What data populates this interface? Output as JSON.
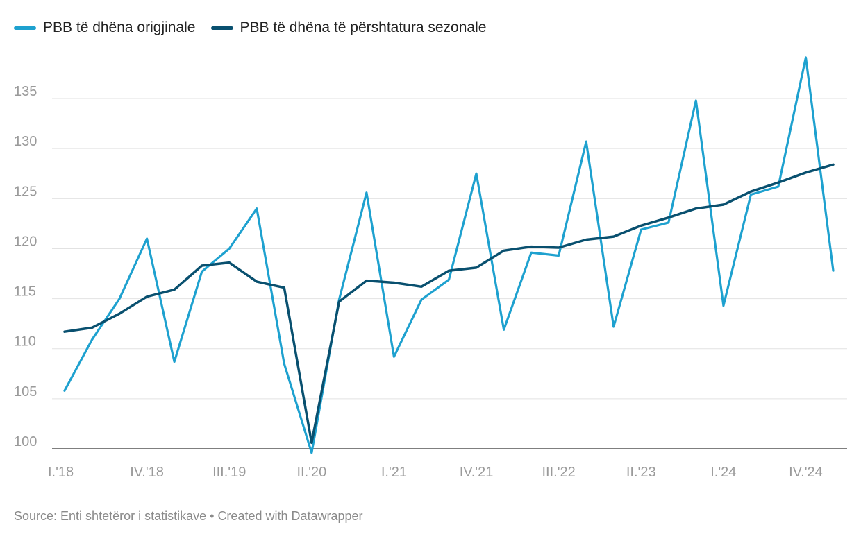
{
  "legend": [
    {
      "label": "PBB të dhëna origjinale",
      "color": "#1ea1cf"
    },
    {
      "label": "PBB të dhëna të përshtatura sezonale",
      "color": "#09506f"
    }
  ],
  "footer": {
    "source": "Source: Enti shtetëror i statistikave",
    "separator": " • ",
    "credit": "Created with Datawrapper"
  },
  "chart_data": {
    "type": "line",
    "x": [
      "I.'18",
      "II.'18",
      "III.'18",
      "IV.'18",
      "I.'19",
      "II.'19",
      "III.'19",
      "IV.'19",
      "I.'20",
      "II.'20",
      "III.'20",
      "IV.'20",
      "I.'21",
      "II.'21",
      "III.'21",
      "IV.'21",
      "I.'22",
      "II.'22",
      "III.'22",
      "IV.'22",
      "I.'23",
      "II.'23",
      "III.'23",
      "IV.'23",
      "I.'24",
      "II.'24",
      "III.'24",
      "IV.'24",
      "I.'25"
    ],
    "x_tick_labels": [
      "I.'18",
      "IV.'18",
      "III.'19",
      "II.'20",
      "I.'21",
      "IV.'21",
      "III.'22",
      "II.'23",
      "I.'24",
      "IV.'24"
    ],
    "x_tick_indices": [
      0,
      3,
      6,
      9,
      12,
      15,
      18,
      21,
      24,
      27
    ],
    "series": [
      {
        "name": "PBB të dhëna origjinale",
        "color": "#1ea1cf",
        "values": [
          105.8,
          110.9,
          115.0,
          121.0,
          108.7,
          117.7,
          120.0,
          124.0,
          108.5,
          99.6,
          114.9,
          125.6,
          109.2,
          114.9,
          116.9,
          127.5,
          111.9,
          119.6,
          119.3,
          130.7,
          112.2,
          121.9,
          122.6,
          134.8,
          114.3,
          125.4,
          126.2,
          139.1,
          117.8
        ]
      },
      {
        "name": "PBB të dhëna të përshtatura sezonale",
        "color": "#09506f",
        "values": [
          111.7,
          112.1,
          113.5,
          115.2,
          115.9,
          118.3,
          118.6,
          116.7,
          116.1,
          100.6,
          114.7,
          116.8,
          116.6,
          116.2,
          117.8,
          118.1,
          119.8,
          120.2,
          120.1,
          120.9,
          121.2,
          122.3,
          123.1,
          124.0,
          124.4,
          125.7,
          126.6,
          127.6,
          128.4
        ]
      }
    ],
    "ylim": [
      100,
      139.3
    ],
    "yticks": [
      100,
      105,
      110,
      115,
      120,
      125,
      130,
      135
    ],
    "grid": true,
    "legend_position": "top-left"
  }
}
